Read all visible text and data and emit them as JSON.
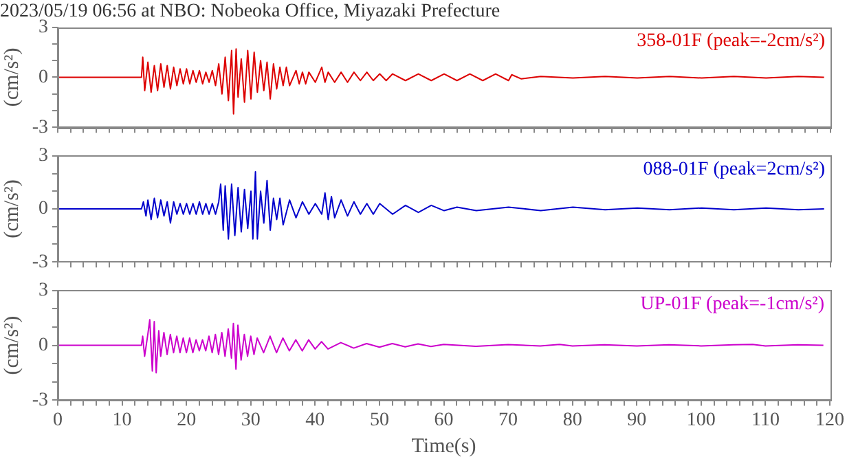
{
  "chart_data": [
    {
      "type": "line",
      "title": "2023/05/19 06:56 at NBO: Nobeoka Office, Miyazaki Prefecture",
      "ylabel": "(cm/s²)",
      "xlim": [
        0,
        120
      ],
      "ylim": [
        -3,
        3
      ],
      "tick_labels": "y",
      "legend": false,
      "marker": "none",
      "xticks": [
        0,
        {
          "value": 2,
          "label": null
        },
        {
          "value": 4,
          "label": null
        },
        {
          "value": 6,
          "label": null
        },
        {
          "value": 8,
          "label": null
        },
        10,
        {
          "value": 12,
          "label": null
        },
        {
          "value": 14,
          "label": null
        },
        {
          "value": 16,
          "label": null
        },
        {
          "value": 18,
          "label": null
        },
        20,
        {
          "value": 22,
          "label": null
        },
        {
          "value": 24,
          "label": null
        },
        {
          "value": 26,
          "label": null
        },
        {
          "value": 28,
          "label": null
        },
        30,
        {
          "value": 32,
          "label": null
        },
        {
          "value": 34,
          "label": null
        },
        {
          "value": 36,
          "label": null
        },
        {
          "value": 38,
          "label": null
        },
        40,
        {
          "value": 42,
          "label": null
        },
        {
          "value": 44,
          "label": null
        },
        {
          "value": 46,
          "label": null
        },
        {
          "value": 48,
          "label": null
        },
        50,
        {
          "value": 52,
          "label": null
        },
        {
          "value": 54,
          "label": null
        },
        {
          "value": 56,
          "label": null
        },
        {
          "value": 58,
          "label": null
        },
        60,
        {
          "value": 62,
          "label": null
        },
        {
          "value": 64,
          "label": null
        },
        {
          "value": 66,
          "label": null
        },
        {
          "value": 68,
          "label": null
        },
        70,
        {
          "value": 72,
          "label": null
        },
        {
          "value": 74,
          "label": null
        },
        {
          "value": 76,
          "label": null
        },
        {
          "value": 78,
          "label": null
        },
        80,
        {
          "value": 82,
          "label": null
        },
        {
          "value": 84,
          "label": null
        },
        {
          "value": 86,
          "label": null
        },
        {
          "value": 88,
          "label": null
        },
        90,
        {
          "value": 92,
          "label": null
        },
        {
          "value": 94,
          "label": null
        },
        {
          "value": 96,
          "label": null
        },
        {
          "value": 98,
          "label": null
        },
        100,
        {
          "value": 102,
          "label": null
        },
        {
          "value": 104,
          "label": null
        },
        {
          "value": 106,
          "label": null
        },
        {
          "value": 108,
          "label": null
        },
        110,
        {
          "value": 112,
          "label": null
        },
        {
          "value": 114,
          "label": null
        },
        {
          "value": 116,
          "label": null
        },
        {
          "value": 118,
          "label": null
        },
        120
      ],
      "yticks": [
        -3,
        {
          "value": -2,
          "label": null
        },
        {
          "value": -1,
          "label": null
        },
        0,
        {
          "value": 1,
          "label": null
        },
        {
          "value": 2,
          "label": null
        },
        3
      ],
      "x": [
        0,
        13,
        13.2,
        13.5,
        14,
        14.5,
        15,
        15.5,
        16,
        16.5,
        17,
        17.5,
        18,
        18.5,
        19,
        19.5,
        20,
        20.5,
        21,
        21.5,
        22,
        22.5,
        23,
        23.5,
        24,
        24.5,
        25,
        25.5,
        26,
        26.5,
        27,
        27.3,
        27.7,
        28,
        28.5,
        29,
        29.5,
        30,
        30.5,
        31,
        31.5,
        32,
        32.5,
        33,
        33.5,
        34,
        34.5,
        35,
        35.5,
        36,
        37,
        37.5,
        38,
        38.5,
        39,
        40,
        41,
        41.5,
        42,
        43,
        44,
        45,
        46,
        47,
        48,
        49,
        50,
        51,
        52,
        54,
        56,
        58,
        60,
        62,
        64,
        66,
        68,
        70,
        70.5,
        72,
        75,
        80,
        85,
        90,
        95,
        100,
        105,
        110,
        115,
        119
      ],
      "series": [
        {
          "name": "358-01F (peak=-2cm/s²)",
          "color": "#dd0000",
          "values": [
            0,
            0,
            1.2,
            -0.8,
            0.9,
            -0.9,
            0.7,
            -0.8,
            0.8,
            -0.6,
            0.7,
            -0.7,
            0.6,
            -0.5,
            0.5,
            -0.4,
            0.5,
            -0.4,
            0.4,
            -0.3,
            0.4,
            -0.4,
            0.3,
            -0.3,
            0.4,
            -0.5,
            0.8,
            -1,
            1.2,
            -1.4,
            1.6,
            -2.2,
            1.7,
            -1.2,
            1.1,
            -1.5,
            1.6,
            -1.3,
            1.5,
            -0.9,
            1,
            -0.8,
            0.9,
            -1.3,
            0.8,
            -0.7,
            0.6,
            -0.5,
            0.6,
            -0.5,
            0.4,
            -0.4,
            0.3,
            -0.4,
            0.3,
            -0.3,
            0.6,
            -0.3,
            0.3,
            -0.3,
            0.3,
            -0.3,
            0.3,
            -0.2,
            0.3,
            -0.2,
            0.2,
            -0.2,
            0.2,
            -0.2,
            0.2,
            -0.2,
            0.2,
            -0.2,
            0.2,
            -0.2,
            0.2,
            -0.2,
            0.15,
            -0.1,
            0.05,
            -0.05,
            0.05,
            -0.05,
            0.05,
            -0.05,
            0.05,
            -0.05,
            0.05,
            0
          ]
        }
      ]
    },
    {
      "type": "line",
      "ylabel": "(cm/s²)",
      "xlim": [
        0,
        120
      ],
      "ylim": [
        -3,
        3
      ],
      "tick_labels": "y",
      "legend": false,
      "marker": "none",
      "xticks": [
        0,
        {
          "value": 2,
          "label": null
        },
        {
          "value": 4,
          "label": null
        },
        {
          "value": 6,
          "label": null
        },
        {
          "value": 8,
          "label": null
        },
        10,
        {
          "value": 12,
          "label": null
        },
        {
          "value": 14,
          "label": null
        },
        {
          "value": 16,
          "label": null
        },
        {
          "value": 18,
          "label": null
        },
        20,
        {
          "value": 22,
          "label": null
        },
        {
          "value": 24,
          "label": null
        },
        {
          "value": 26,
          "label": null
        },
        {
          "value": 28,
          "label": null
        },
        30,
        {
          "value": 32,
          "label": null
        },
        {
          "value": 34,
          "label": null
        },
        {
          "value": 36,
          "label": null
        },
        {
          "value": 38,
          "label": null
        },
        40,
        {
          "value": 42,
          "label": null
        },
        {
          "value": 44,
          "label": null
        },
        {
          "value": 46,
          "label": null
        },
        {
          "value": 48,
          "label": null
        },
        50,
        {
          "value": 52,
          "label": null
        },
        {
          "value": 54,
          "label": null
        },
        {
          "value": 56,
          "label": null
        },
        {
          "value": 58,
          "label": null
        },
        60,
        {
          "value": 62,
          "label": null
        },
        {
          "value": 64,
          "label": null
        },
        {
          "value": 66,
          "label": null
        },
        {
          "value": 68,
          "label": null
        },
        70,
        {
          "value": 72,
          "label": null
        },
        {
          "value": 74,
          "label": null
        },
        {
          "value": 76,
          "label": null
        },
        {
          "value": 78,
          "label": null
        },
        80,
        {
          "value": 82,
          "label": null
        },
        {
          "value": 84,
          "label": null
        },
        {
          "value": 86,
          "label": null
        },
        {
          "value": 88,
          "label": null
        },
        90,
        {
          "value": 92,
          "label": null
        },
        {
          "value": 94,
          "label": null
        },
        {
          "value": 96,
          "label": null
        },
        {
          "value": 98,
          "label": null
        },
        100,
        {
          "value": 102,
          "label": null
        },
        {
          "value": 104,
          "label": null
        },
        {
          "value": 106,
          "label": null
        },
        {
          "value": 108,
          "label": null
        },
        110,
        {
          "value": 112,
          "label": null
        },
        {
          "value": 114,
          "label": null
        },
        {
          "value": 116,
          "label": null
        },
        {
          "value": 118,
          "label": null
        },
        120
      ],
      "yticks": [
        -3,
        {
          "value": -2,
          "label": null
        },
        {
          "value": -1,
          "label": null
        },
        0,
        {
          "value": 1,
          "label": null
        },
        {
          "value": 2,
          "label": null
        },
        3
      ],
      "x": [
        0,
        13,
        13.3,
        13.7,
        14,
        14.5,
        15,
        15.5,
        16,
        16.5,
        17,
        17.5,
        18,
        18.5,
        19,
        19.5,
        20,
        20.5,
        21,
        21.5,
        22,
        22.5,
        23,
        23.5,
        24,
        24.5,
        25,
        25.3,
        25.7,
        26,
        26.5,
        27,
        27.5,
        28,
        28.5,
        29,
        29.5,
        30,
        30.3,
        30.7,
        31,
        31.5,
        32,
        32.5,
        33,
        33.5,
        34,
        34.5,
        35,
        36,
        37,
        38,
        39,
        40,
        41,
        41.5,
        42,
        42.5,
        43,
        44,
        45,
        46,
        47,
        48,
        49,
        50,
        52,
        54,
        56,
        58,
        60,
        62,
        65,
        70,
        75,
        80,
        85,
        90,
        95,
        100,
        105,
        110,
        115,
        119
      ],
      "series": [
        {
          "name": "088-01F (peak=2cm/s²)",
          "color": "#0000cc",
          "values": [
            0,
            0,
            0.4,
            -0.4,
            0.5,
            -0.6,
            0.6,
            -0.5,
            0.5,
            -0.4,
            0.4,
            -0.8,
            0.4,
            -0.3,
            0.3,
            -0.3,
            0.3,
            -0.3,
            0.3,
            -0.3,
            0.4,
            -0.3,
            0.3,
            -0.3,
            0.3,
            -0.3,
            0.4,
            1.4,
            -1.2,
            1.3,
            -1.7,
            1.4,
            -1.5,
            1.2,
            -1.3,
            1.1,
            -1.1,
            1,
            -1.7,
            2.1,
            -1.7,
            1,
            -0.8,
            1.6,
            -1.2,
            0.6,
            -0.6,
            0.6,
            -0.9,
            0.5,
            -0.5,
            0.4,
            -0.3,
            0.3,
            -0.3,
            0.9,
            -0.6,
            0.7,
            -0.5,
            0.5,
            -0.4,
            0.4,
            -0.3,
            0.3,
            -0.3,
            0.3,
            -0.3,
            0.2,
            -0.2,
            0.2,
            -0.1,
            0.1,
            -0.1,
            0.1,
            -0.1,
            0.1,
            -0.05,
            0.05,
            -0.05,
            0.05,
            -0.05,
            0.05,
            -0.05,
            0
          ]
        }
      ]
    },
    {
      "type": "line",
      "ylabel": "(cm/s²)",
      "xlabel": "Time(s)",
      "xlim": [
        0,
        120
      ],
      "ylim": [
        -3,
        3
      ],
      "legend": false,
      "marker": "none",
      "xticks": [
        0,
        {
          "value": 2,
          "label": null
        },
        {
          "value": 4,
          "label": null
        },
        {
          "value": 6,
          "label": null
        },
        {
          "value": 8,
          "label": null
        },
        10,
        {
          "value": 12,
          "label": null
        },
        {
          "value": 14,
          "label": null
        },
        {
          "value": 16,
          "label": null
        },
        {
          "value": 18,
          "label": null
        },
        20,
        {
          "value": 22,
          "label": null
        },
        {
          "value": 24,
          "label": null
        },
        {
          "value": 26,
          "label": null
        },
        {
          "value": 28,
          "label": null
        },
        30,
        {
          "value": 32,
          "label": null
        },
        {
          "value": 34,
          "label": null
        },
        {
          "value": 36,
          "label": null
        },
        {
          "value": 38,
          "label": null
        },
        40,
        {
          "value": 42,
          "label": null
        },
        {
          "value": 44,
          "label": null
        },
        {
          "value": 46,
          "label": null
        },
        {
          "value": 48,
          "label": null
        },
        50,
        {
          "value": 52,
          "label": null
        },
        {
          "value": 54,
          "label": null
        },
        {
          "value": 56,
          "label": null
        },
        {
          "value": 58,
          "label": null
        },
        60,
        {
          "value": 62,
          "label": null
        },
        {
          "value": 64,
          "label": null
        },
        {
          "value": 66,
          "label": null
        },
        {
          "value": 68,
          "label": null
        },
        70,
        {
          "value": 72,
          "label": null
        },
        {
          "value": 74,
          "label": null
        },
        {
          "value": 76,
          "label": null
        },
        {
          "value": 78,
          "label": null
        },
        80,
        {
          "value": 82,
          "label": null
        },
        {
          "value": 84,
          "label": null
        },
        {
          "value": 86,
          "label": null
        },
        {
          "value": 88,
          "label": null
        },
        90,
        {
          "value": 92,
          "label": null
        },
        {
          "value": 94,
          "label": null
        },
        {
          "value": 96,
          "label": null
        },
        {
          "value": 98,
          "label": null
        },
        100,
        {
          "value": 102,
          "label": null
        },
        {
          "value": 104,
          "label": null
        },
        {
          "value": 106,
          "label": null
        },
        {
          "value": 108,
          "label": null
        },
        110,
        {
          "value": 112,
          "label": null
        },
        {
          "value": 114,
          "label": null
        },
        {
          "value": 116,
          "label": null
        },
        {
          "value": 118,
          "label": null
        },
        120
      ],
      "yticks": [
        -3,
        {
          "value": -2,
          "label": null
        },
        {
          "value": -1,
          "label": null
        },
        0,
        {
          "value": 1,
          "label": null
        },
        {
          "value": 2,
          "label": null
        },
        3
      ],
      "x": [
        0,
        13,
        13.2,
        13.5,
        14,
        14.3,
        14.7,
        15,
        15.3,
        15.7,
        16,
        16.5,
        17,
        17.5,
        18,
        18.5,
        19,
        19.5,
        20,
        20.5,
        21,
        21.5,
        22,
        22.5,
        23,
        23.5,
        24,
        24.5,
        25,
        25.5,
        26,
        26.5,
        27,
        27.3,
        27.7,
        28,
        28.5,
        29,
        29.5,
        30,
        30.5,
        31,
        32,
        33,
        34,
        35,
        36,
        37,
        38,
        39,
        40,
        41,
        42,
        44,
        46,
        48,
        50,
        52,
        54,
        56,
        58,
        60,
        65,
        70,
        75,
        78,
        80,
        85,
        90,
        95,
        100,
        105,
        108,
        110,
        115,
        119
      ],
      "series": [
        {
          "name": "UP-01F (peak=-1cm/s²)",
          "color": "#cc00cc",
          "values": [
            0,
            0,
            0.5,
            -0.6,
            0.6,
            1.4,
            -1.4,
            1.3,
            -1.5,
            0.8,
            -0.6,
            0.7,
            -0.5,
            0.6,
            -0.4,
            0.5,
            -0.4,
            0.4,
            -0.4,
            0.4,
            -0.4,
            0.3,
            -0.3,
            0.3,
            -0.3,
            0.5,
            -0.4,
            0.6,
            -0.5,
            0.7,
            -0.6,
            0.9,
            -0.7,
            1.2,
            -1.3,
            1.1,
            -0.8,
            0.6,
            -0.6,
            0.5,
            -0.5,
            0.4,
            -0.4,
            0.5,
            -0.4,
            0.4,
            -0.3,
            0.3,
            -0.3,
            0.3,
            -0.2,
            0.2,
            -0.2,
            0.15,
            -0.15,
            0.1,
            -0.1,
            0.1,
            -0.08,
            0.08,
            -0.06,
            0.05,
            -0.05,
            0.04,
            -0.03,
            0.05,
            -0.03,
            0.03,
            -0.03,
            0.03,
            -0.03,
            0.03,
            0.05,
            -0.03,
            0.03,
            0
          ]
        }
      ]
    }
  ]
}
